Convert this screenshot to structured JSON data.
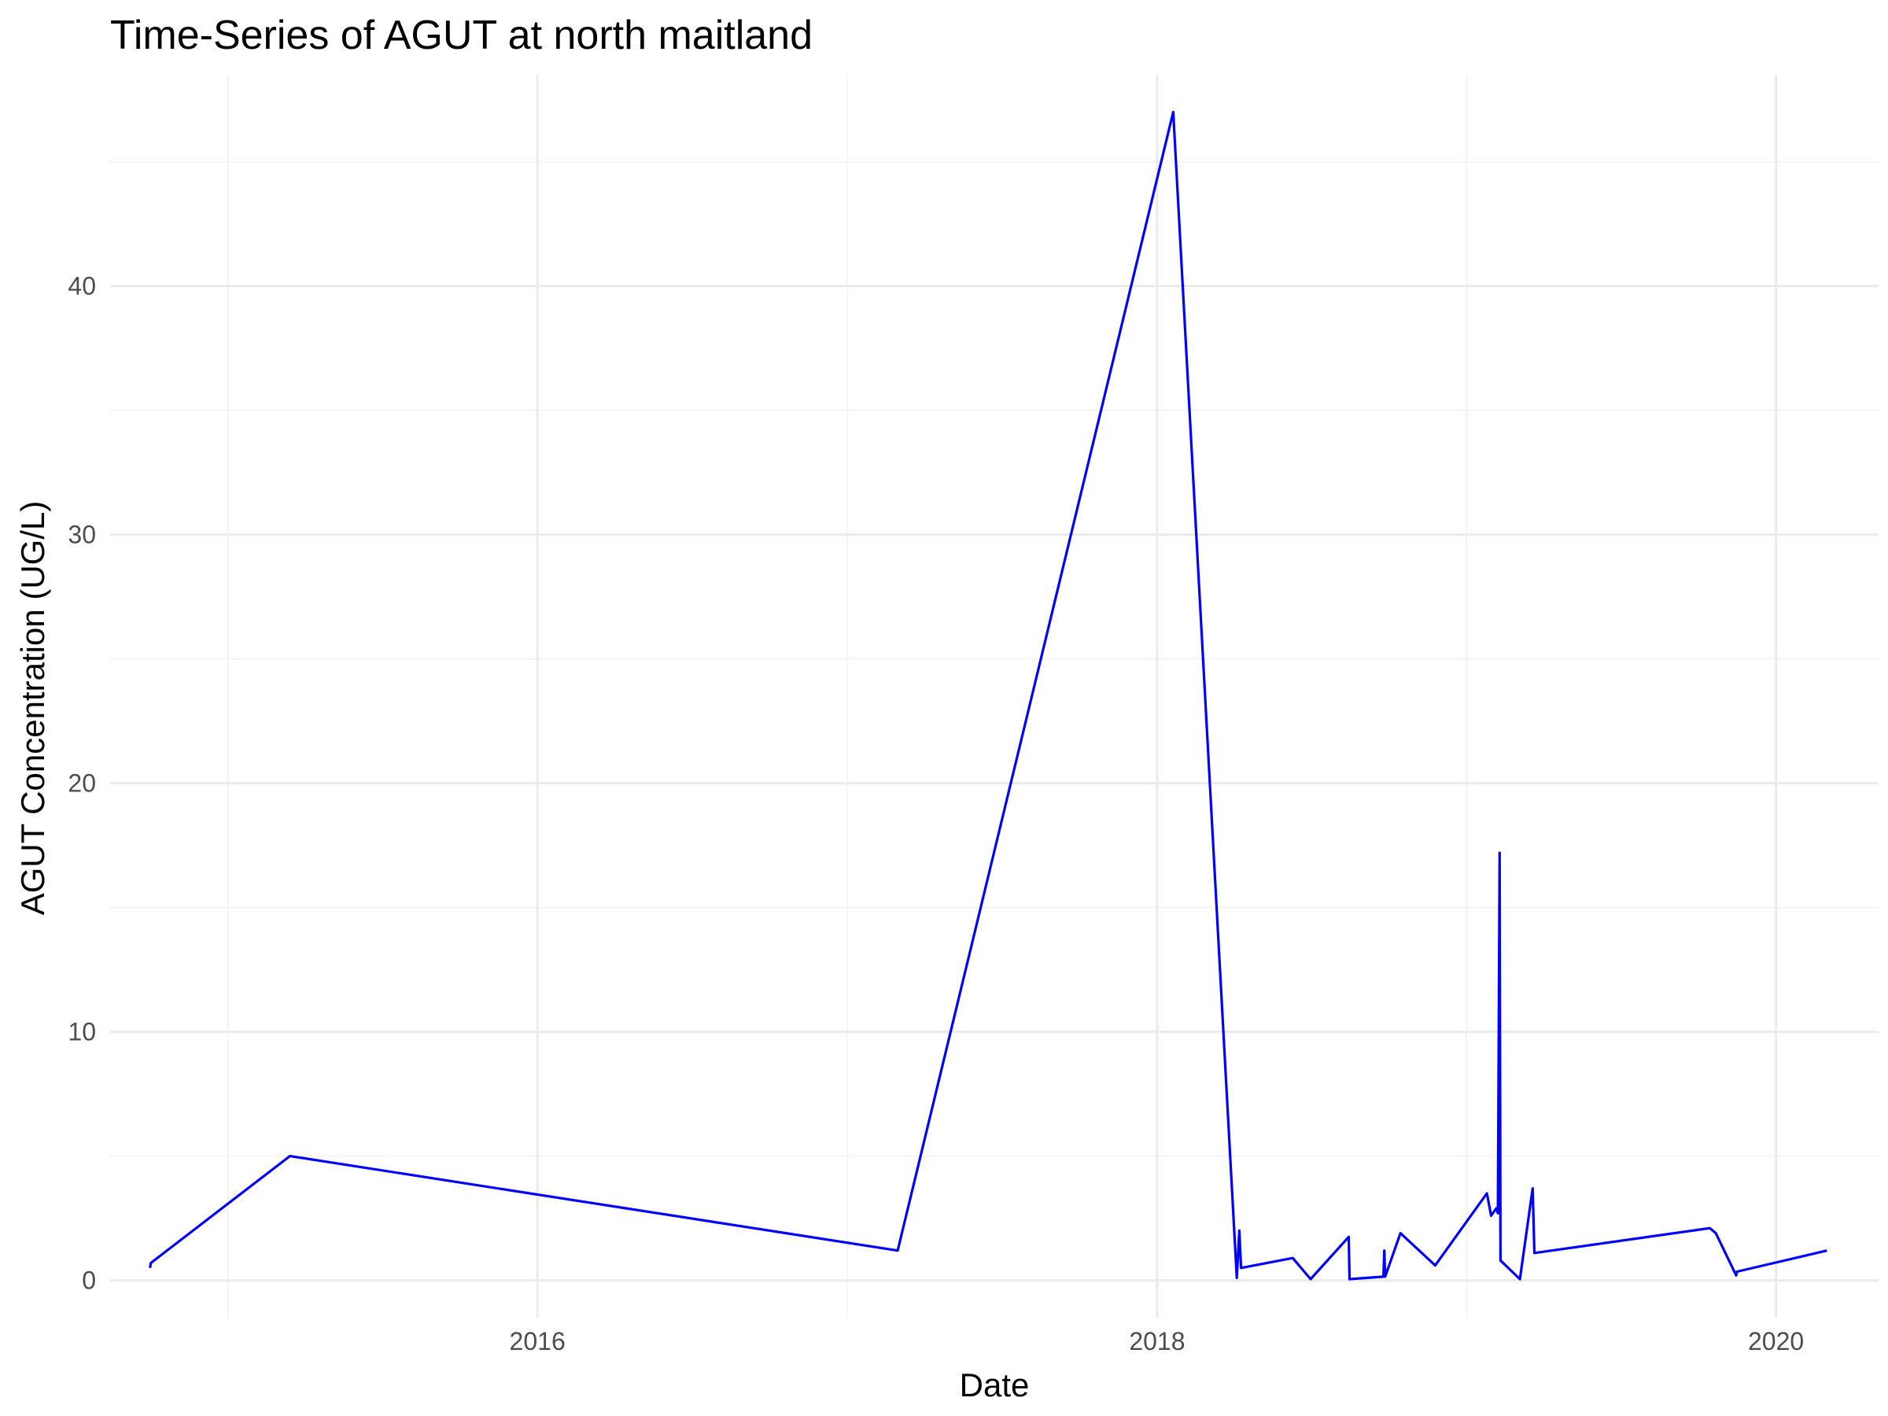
{
  "chart_data": {
    "type": "line",
    "title": "Time-Series of AGUT at north maitland",
    "xlabel": "Date",
    "ylabel": "AGUT Concentration (UG/L)",
    "x_type": "date",
    "xlim": [
      "2014-08-15",
      "2020-05-01"
    ],
    "ylim": [
      -1.5,
      48.5
    ],
    "x_ticks": [
      {
        "date": "2016-01-01",
        "label": "2016"
      },
      {
        "date": "2018-01-01",
        "label": "2018"
      },
      {
        "date": "2020-01-01",
        "label": "2020"
      }
    ],
    "x_minor_ticks": [
      "2015-01-01",
      "2017-01-01",
      "2019-01-01"
    ],
    "y_ticks": [
      0,
      10,
      20,
      30,
      40
    ],
    "y_minor_ticks": [
      5,
      15,
      25,
      35,
      45
    ],
    "grid": true,
    "line_color": "#0000FF",
    "series": [
      {
        "points": [
          {
            "x": "2014-10-01",
            "y": 0.5
          },
          {
            "x": "2014-10-02",
            "y": 0.7
          },
          {
            "x": "2015-03-15",
            "y": 5.0
          },
          {
            "x": "2017-03-01",
            "y": 1.2
          },
          {
            "x": "2018-01-20",
            "y": 47.0
          },
          {
            "x": "2018-04-05",
            "y": 0.1
          },
          {
            "x": "2018-04-08",
            "y": 2.0
          },
          {
            "x": "2018-04-10",
            "y": 0.5
          },
          {
            "x": "2018-06-10",
            "y": 0.9
          },
          {
            "x": "2018-07-01",
            "y": 0.05
          },
          {
            "x": "2018-08-15",
            "y": 1.75
          },
          {
            "x": "2018-08-16",
            "y": 0.05
          },
          {
            "x": "2018-09-25",
            "y": 0.15
          },
          {
            "x": "2018-09-26",
            "y": 1.2
          },
          {
            "x": "2018-09-27",
            "y": 0.15
          },
          {
            "x": "2018-10-15",
            "y": 1.9
          },
          {
            "x": "2018-11-25",
            "y": 0.6
          },
          {
            "x": "2019-01-25",
            "y": 3.5
          },
          {
            "x": "2019-01-30",
            "y": 2.6
          },
          {
            "x": "2019-02-05",
            "y": 2.9
          },
          {
            "x": "2019-02-07",
            "y": 2.7
          },
          {
            "x": "2019-02-09",
            "y": 17.2
          },
          {
            "x": "2019-02-10",
            "y": 0.8
          },
          {
            "x": "2019-03-05",
            "y": 0.05
          },
          {
            "x": "2019-03-20",
            "y": 3.7
          },
          {
            "x": "2019-03-22",
            "y": 1.1
          },
          {
            "x": "2019-10-15",
            "y": 2.1
          },
          {
            "x": "2019-10-22",
            "y": 1.9
          },
          {
            "x": "2019-11-15",
            "y": 0.2
          },
          {
            "x": "2019-11-16",
            "y": 0.35
          },
          {
            "x": "2020-03-01",
            "y": 1.2
          }
        ]
      }
    ]
  }
}
